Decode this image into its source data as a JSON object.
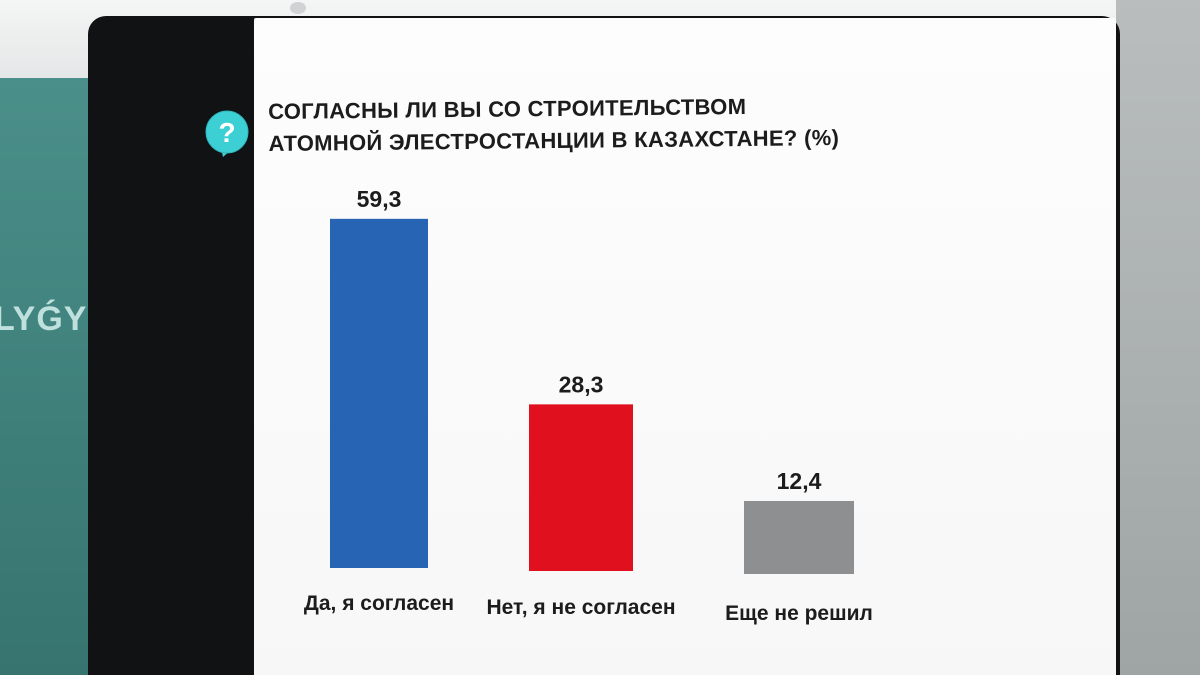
{
  "background": {
    "wall_text": "LYǴY"
  },
  "question_icon": {
    "name": "question-mark-icon",
    "glyph": "?",
    "color": "#3ccfd4"
  },
  "title": {
    "line1": "СОГЛАСНЫ ЛИ ВЫ СО СТРОИТЕЛЬСТВОМ",
    "line2": "АТОМНОЙ ЭЛЕСТРОСТАНЦИИ В КАЗАХСТАНЕ? (%)"
  },
  "chart_data": {
    "type": "bar",
    "categories": [
      "Да, я согласен",
      "Нет, я не согласен",
      "Еще не решил"
    ],
    "values": [
      59.3,
      28.3,
      12.4
    ],
    "value_labels": [
      "59,3",
      "28,3",
      "12,4"
    ],
    "colors": [
      "#2864b4",
      "#e0101e",
      "#8e8f90"
    ],
    "ylim": [
      0,
      65
    ],
    "grid": false,
    "legend": "none"
  }
}
